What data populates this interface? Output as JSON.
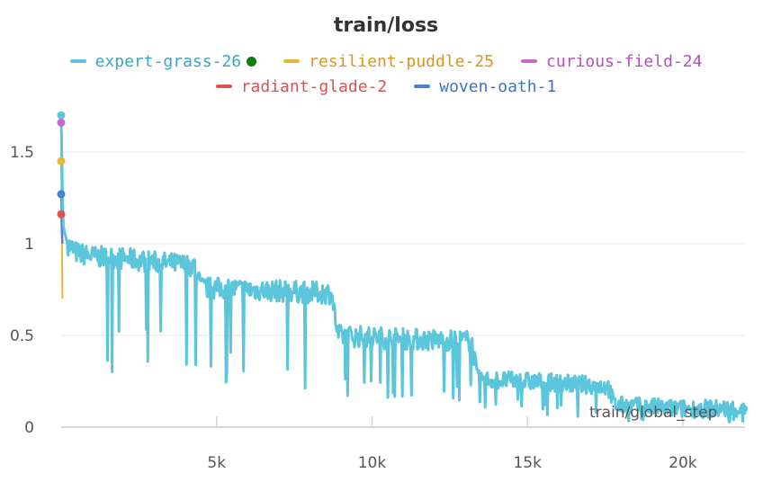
{
  "chart_data": {
    "type": "line",
    "title": "train/loss",
    "xlabel": "",
    "ylabel": "",
    "xlim": [
      0,
      22000
    ],
    "ylim": [
      0,
      1.75
    ],
    "x_ticks": [
      {
        "value": 5000,
        "label": "5k"
      },
      {
        "value": 10000,
        "label": "10k"
      },
      {
        "value": 15000,
        "label": "15k"
      },
      {
        "value": 20000,
        "label": "20k"
      }
    ],
    "y_ticks": [
      {
        "value": 0,
        "label": "0"
      },
      {
        "value": 0.5,
        "label": "0.5"
      },
      {
        "value": 1,
        "label": "1"
      },
      {
        "value": 1.5,
        "label": "1.5"
      }
    ],
    "grid": true,
    "legend_position": "top",
    "series": [
      {
        "name": "expert-grass-26",
        "color": "#5bc5db",
        "x": [
          0,
          60,
          200,
          500,
          1000,
          2000,
          3000,
          4300,
          4500,
          6000,
          8700,
          8900,
          11000,
          13200,
          13400,
          15000,
          17000,
          17600,
          17800,
          20000,
          22000
        ],
        "y": [
          1.7,
          1.1,
          1.0,
          0.95,
          0.93,
          0.92,
          0.9,
          0.88,
          0.76,
          0.75,
          0.73,
          0.5,
          0.48,
          0.47,
          0.26,
          0.25,
          0.23,
          0.22,
          0.12,
          0.1,
          0.1
        ]
      },
      {
        "name": "resilient-puddle-25",
        "color": "#e9b734",
        "x": [
          0,
          20,
          40
        ],
        "y": [
          1.45,
          1.1,
          0.7
        ]
      },
      {
        "name": "curious-field-24",
        "color": "#c46bcc",
        "x": [
          0,
          20,
          40
        ],
        "y": [
          1.66,
          1.3,
          1.0
        ]
      },
      {
        "name": "radiant-glade-2",
        "color": "#d9534f",
        "x": [
          0,
          20,
          40
        ],
        "y": [
          1.16,
          1.05,
          1.0
        ]
      },
      {
        "name": "woven-oath-1",
        "color": "#4a7fd4",
        "x": [
          0,
          20,
          40
        ],
        "y": [
          1.27,
          1.1,
          1.0
        ]
      }
    ],
    "highlight_color": "#117a11",
    "overlay_text": "train/global_step"
  }
}
